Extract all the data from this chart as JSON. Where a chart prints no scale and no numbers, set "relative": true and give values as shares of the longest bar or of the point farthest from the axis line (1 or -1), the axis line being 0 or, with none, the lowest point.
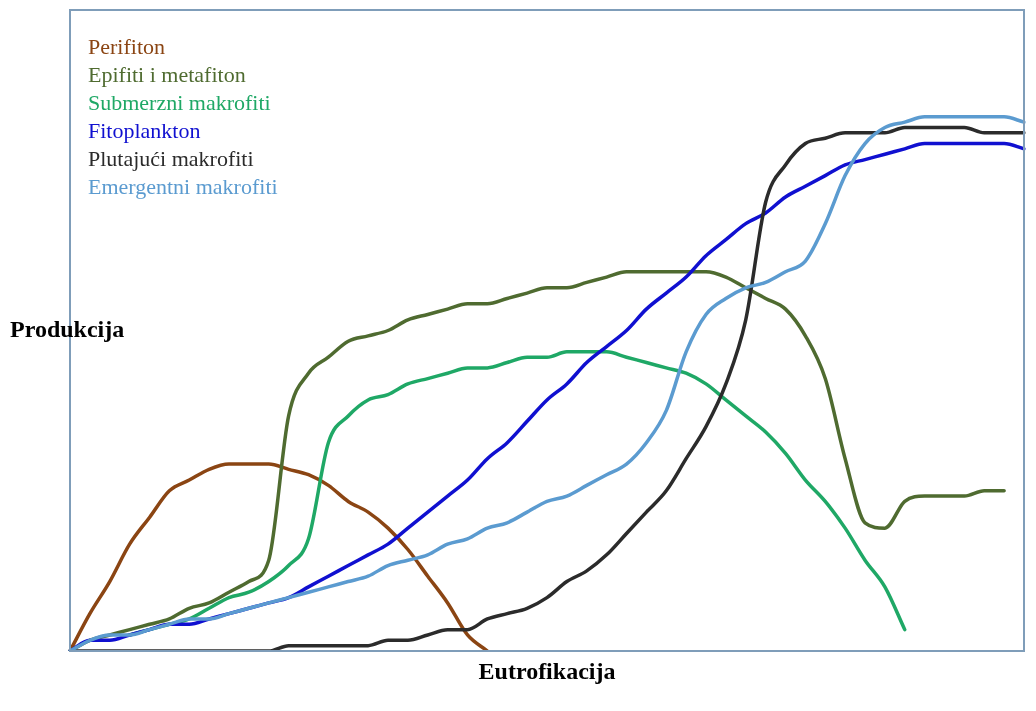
{
  "chart_data": {
    "type": "line",
    "relative": true,
    "xlabel": "Eutrofikacija",
    "ylabel": "Produkcija",
    "legend": "top left",
    "categories": [
      null,
      null,
      null,
      null,
      null,
      null,
      null,
      null,
      null,
      null,
      null,
      null,
      null,
      null,
      null,
      null,
      null,
      null,
      null,
      null,
      null,
      null,
      null,
      null,
      null,
      null,
      null,
      null,
      null,
      null,
      null,
      null,
      null,
      null,
      null,
      null,
      null,
      null,
      null,
      null,
      null,
      null,
      null,
      null,
      null,
      null,
      null,
      null,
      null
    ],
    "series": [
      {
        "name": "Perifiton",
        "color": "#8b4513",
        "values": [
          0,
          0.07,
          0.13,
          0.2,
          0.25,
          0.3,
          0.32,
          0.34,
          0.35,
          0.35,
          0.35,
          0.34,
          0.33,
          0.31,
          0.28,
          0.26,
          0.23,
          0.19,
          0.14,
          0.09,
          0.03,
          0,
          null,
          null,
          null,
          null,
          null,
          null,
          null,
          null,
          null,
          null,
          null,
          null,
          null,
          null,
          null,
          null,
          null,
          null,
          null,
          null,
          null,
          null,
          null,
          null,
          null,
          null,
          null
        ]
      },
      {
        "name": "Epifiti i metafiton",
        "color": "#4f6b30",
        "values": [
          0,
          0.02,
          0.03,
          0.04,
          0.05,
          0.06,
          0.08,
          0.09,
          0.11,
          0.13,
          0.17,
          0.44,
          0.52,
          0.55,
          0.58,
          0.59,
          0.6,
          0.62,
          0.63,
          0.64,
          0.65,
          0.65,
          0.66,
          0.67,
          0.68,
          0.68,
          0.69,
          0.7,
          0.71,
          0.71,
          0.71,
          0.71,
          0.71,
          0.7,
          0.68,
          0.66,
          0.64,
          0.59,
          0.51,
          0.36,
          0.24,
          0.23,
          0.28,
          0.29,
          0.29,
          0.29,
          0.3,
          0.3,
          null
        ]
      },
      {
        "name": "Submerzni makrofiti",
        "color": "#1fa866",
        "values": [
          null,
          null,
          null,
          0.03,
          0.04,
          0.05,
          0.06,
          0.08,
          0.1,
          0.11,
          0.13,
          0.16,
          0.21,
          0.39,
          0.44,
          0.47,
          0.48,
          0.5,
          0.51,
          0.52,
          0.53,
          0.53,
          0.54,
          0.55,
          0.55,
          0.56,
          0.56,
          0.56,
          0.55,
          0.54,
          0.53,
          0.52,
          0.5,
          0.47,
          0.44,
          0.41,
          0.37,
          0.32,
          0.28,
          0.23,
          0.17,
          0.12,
          0.04,
          null,
          null,
          null,
          null,
          null,
          null
        ]
      },
      {
        "name": "Fitoplankton",
        "color": "#1010d0",
        "values": [
          0,
          0.02,
          0.02,
          0.03,
          0.04,
          0.05,
          0.05,
          0.06,
          0.07,
          0.08,
          0.09,
          0.1,
          0.12,
          0.14,
          0.16,
          0.18,
          0.2,
          0.23,
          0.26,
          0.29,
          0.32,
          0.36,
          0.39,
          0.43,
          0.47,
          0.5,
          0.54,
          0.57,
          0.6,
          0.64,
          0.67,
          0.7,
          0.74,
          0.77,
          0.8,
          0.82,
          0.85,
          0.87,
          0.89,
          0.91,
          0.92,
          0.93,
          0.94,
          0.95,
          0.95,
          0.95,
          0.95,
          0.95,
          0.94
        ]
      },
      {
        "name": "Plutajući makrofiti",
        "color": "#2b2b2b",
        "values": [
          0,
          0,
          0,
          0,
          0,
          0,
          0,
          0,
          0,
          0,
          0,
          0.01,
          0.01,
          0.01,
          0.01,
          0.01,
          0.02,
          0.02,
          0.03,
          0.04,
          0.04,
          0.06,
          0.07,
          0.08,
          0.1,
          0.13,
          0.15,
          0.18,
          0.22,
          0.26,
          0.3,
          0.36,
          0.42,
          0.5,
          0.62,
          0.84,
          0.91,
          0.95,
          0.96,
          0.97,
          0.97,
          0.97,
          0.98,
          0.98,
          0.98,
          0.98,
          0.97,
          0.97,
          0.97
        ]
      },
      {
        "name": "Emergentni makrofiti",
        "color": "#5b9bd0",
        "values": [
          0,
          0.02,
          0.03,
          0.03,
          0.04,
          0.05,
          0.06,
          0.06,
          0.07,
          0.08,
          0.09,
          0.1,
          0.11,
          0.12,
          0.13,
          0.14,
          0.16,
          0.17,
          0.18,
          0.2,
          0.21,
          0.23,
          0.24,
          0.26,
          0.28,
          0.29,
          0.31,
          0.33,
          0.35,
          0.39,
          0.45,
          0.56,
          0.63,
          0.66,
          0.68,
          0.69,
          0.71,
          0.73,
          0.8,
          0.89,
          0.95,
          0.98,
          0.99,
          1,
          1,
          1,
          1,
          1,
          0.99
        ]
      }
    ]
  }
}
